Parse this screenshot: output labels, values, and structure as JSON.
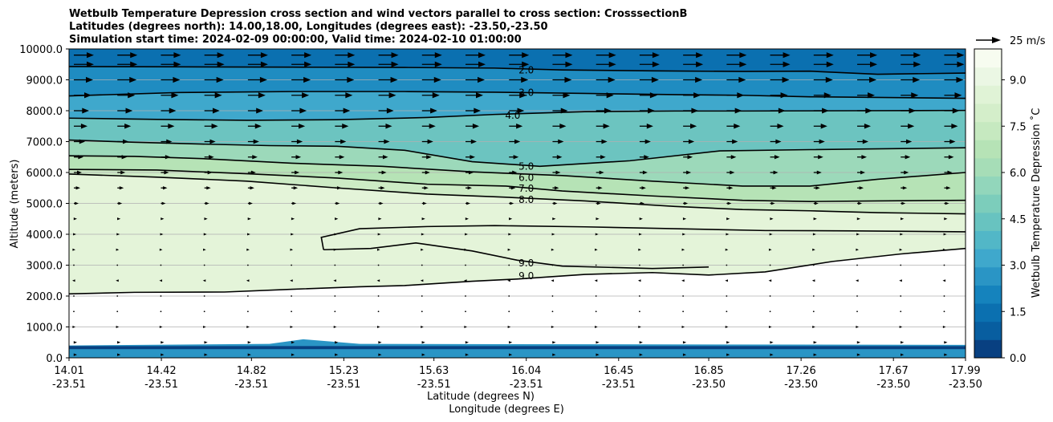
{
  "chart_data": {
    "type": "heatmap",
    "title_lines": [
      "Wetbulb Temperature Depression cross section and wind vectors parallel to cross section: CrosssectionB",
      "Latitudes (degrees north): 14.00,18.00, Longitudes (degrees east): -23.50,-23.50",
      "Simulation start time: 2024-02-09 00:00:00, Valid time: 2024-02-10 01:00:00"
    ],
    "xlabel": "Latitude (degrees N)",
    "xlabel2": "Longitude (degrees E)",
    "ylabel": "Altitude (meters)",
    "colorbar_label": "Wetbulb Temperature Depression ˚C",
    "quiver_key": "25 m/s",
    "xlim": [
      14.01,
      17.99
    ],
    "ylim": [
      0,
      10000
    ],
    "x_ticks": [
      {
        "lat": "14.01",
        "lon": "-23.51",
        "v": 14.01
      },
      {
        "lat": "14.42",
        "lon": "-23.51",
        "v": 14.42
      },
      {
        "lat": "14.82",
        "lon": "-23.51",
        "v": 14.82
      },
      {
        "lat": "15.23",
        "lon": "-23.51",
        "v": 15.23
      },
      {
        "lat": "15.63",
        "lon": "-23.51",
        "v": 15.63
      },
      {
        "lat": "16.04",
        "lon": "-23.51",
        "v": 16.04
      },
      {
        "lat": "16.45",
        "lon": "-23.51",
        "v": 16.45
      },
      {
        "lat": "16.85",
        "lon": "-23.50",
        "v": 16.85
      },
      {
        "lat": "17.26",
        "lon": "-23.50",
        "v": 17.26
      },
      {
        "lat": "17.67",
        "lon": "-23.50",
        "v": 17.67
      },
      {
        "lat": "17.99",
        "lon": "-23.50",
        "v": 17.99
      }
    ],
    "y_ticks": [
      {
        "label": "0.0",
        "v": 0
      },
      {
        "label": "1000.0",
        "v": 1000
      },
      {
        "label": "2000.0",
        "v": 2000
      },
      {
        "label": "3000.0",
        "v": 3000
      },
      {
        "label": "4000.0",
        "v": 4000
      },
      {
        "label": "5000.0",
        "v": 5000
      },
      {
        "label": "6000.0",
        "v": 6000
      },
      {
        "label": "7000.0",
        "v": 7000
      },
      {
        "label": "8000.0",
        "v": 8000
      },
      {
        "label": "9000.0",
        "v": 9000
      },
      {
        "label": "10000.0",
        "v": 10000
      }
    ],
    "colorbar_ticks": [
      "0.0",
      "1.5",
      "3.0",
      "4.5",
      "6.0",
      "7.5",
      "9.0"
    ],
    "colorbar_range": [
      0,
      10
    ],
    "colorbar_colors": [
      "#084081",
      "#085ea0",
      "#0b70b0",
      "#1583bd",
      "#2a95c5",
      "#3fa8cc",
      "#52b7c7",
      "#68c3c0",
      "#7ccdbb",
      "#92d6bb",
      "#a6ddb7",
      "#b6e3b6",
      "#c6e9c0",
      "#d4eeca",
      "#e0f3d6",
      "#ebf7e4",
      "#f7fcf0"
    ],
    "contours": [
      {
        "label": "2.0",
        "level": 2,
        "pts": [
          [
            14.01,
            9430
          ],
          [
            14.5,
            9420
          ],
          [
            15.0,
            9410
          ],
          [
            15.5,
            9400
          ],
          [
            15.9,
            9380
          ],
          [
            16.2,
            9320
          ],
          [
            16.6,
            9290
          ],
          [
            17.0,
            9270
          ],
          [
            17.3,
            9280
          ],
          [
            17.6,
            9180
          ],
          [
            17.99,
            9220
          ]
        ]
      },
      {
        "label": "3.0",
        "level": 3,
        "pts": [
          [
            14.01,
            8480
          ],
          [
            14.5,
            8590
          ],
          [
            15.0,
            8620
          ],
          [
            15.5,
            8620
          ],
          [
            15.9,
            8600
          ],
          [
            16.3,
            8560
          ],
          [
            16.7,
            8520
          ],
          [
            17.0,
            8500
          ],
          [
            17.3,
            8450
          ],
          [
            17.6,
            8430
          ],
          [
            17.99,
            8400
          ]
        ]
      },
      {
        "label": "4.0",
        "level": 4,
        "pts": [
          [
            14.01,
            7760
          ],
          [
            14.4,
            7720
          ],
          [
            14.8,
            7690
          ],
          [
            15.2,
            7710
          ],
          [
            15.6,
            7780
          ],
          [
            15.9,
            7880
          ],
          [
            16.3,
            7970
          ],
          [
            16.7,
            7990
          ],
          [
            17.0,
            7990
          ],
          [
            17.5,
            8000
          ],
          [
            17.99,
            8010
          ]
        ]
      },
      {
        "label": "5.0",
        "level": 5,
        "pts": [
          [
            14.01,
            7050
          ],
          [
            14.3,
            6980
          ],
          [
            14.6,
            6920
          ],
          [
            14.9,
            6870
          ],
          [
            15.2,
            6850
          ],
          [
            15.5,
            6720
          ],
          [
            15.8,
            6350
          ],
          [
            16.1,
            6200
          ],
          [
            16.5,
            6380
          ],
          [
            16.9,
            6700
          ],
          [
            17.3,
            6740
          ],
          [
            17.99,
            6800
          ]
        ]
      },
      {
        "label": "6.0",
        "level": 6,
        "pts": [
          [
            14.01,
            6540
          ],
          [
            14.3,
            6520
          ],
          [
            14.6,
            6450
          ],
          [
            15.0,
            6300
          ],
          [
            15.4,
            6200
          ],
          [
            15.8,
            6020
          ],
          [
            16.2,
            5900
          ],
          [
            16.6,
            5720
          ],
          [
            17.0,
            5560
          ],
          [
            17.3,
            5560
          ],
          [
            17.6,
            5780
          ],
          [
            17.99,
            6000
          ]
        ]
      },
      {
        "label": "7.0",
        "level": 7,
        "pts": [
          [
            14.01,
            6100
          ],
          [
            14.4,
            6080
          ],
          [
            14.8,
            5960
          ],
          [
            15.2,
            5820
          ],
          [
            15.6,
            5620
          ],
          [
            15.95,
            5560
          ],
          [
            16.2,
            5400
          ],
          [
            16.6,
            5240
          ],
          [
            17.0,
            5100
          ],
          [
            17.3,
            5060
          ],
          [
            17.6,
            5080
          ],
          [
            17.99,
            5100
          ]
        ]
      },
      {
        "label": "8.0",
        "level": 8,
        "pts": [
          [
            14.01,
            5950
          ],
          [
            14.4,
            5850
          ],
          [
            14.8,
            5720
          ],
          [
            15.2,
            5500
          ],
          [
            15.6,
            5300
          ],
          [
            15.95,
            5200
          ],
          [
            16.3,
            5080
          ],
          [
            16.7,
            4900
          ],
          [
            17.0,
            4800
          ],
          [
            17.3,
            4760
          ],
          [
            17.6,
            4700
          ],
          [
            17.99,
            4660
          ]
        ]
      },
      {
        "label": "9.0",
        "level": 9,
        "pts": [
          [
            14.01,
            2070
          ],
          [
            14.3,
            2120
          ],
          [
            14.7,
            2130
          ],
          [
            15.0,
            2220
          ],
          [
            15.3,
            2300
          ],
          [
            15.5,
            2340
          ],
          [
            15.8,
            2480
          ],
          [
            16.0,
            2550
          ],
          [
            16.3,
            2700
          ],
          [
            16.6,
            2760
          ],
          [
            16.85,
            2680
          ],
          [
            17.1,
            2780
          ],
          [
            17.4,
            3120
          ],
          [
            17.7,
            3360
          ],
          [
            17.99,
            3540
          ]
        ]
      },
      {
        "label": "9.0",
        "level": 9,
        "pts": [
          [
            15.14,
            3500
          ],
          [
            15.13,
            3900
          ],
          [
            15.3,
            4180
          ],
          [
            15.6,
            4250
          ],
          [
            15.9,
            4280
          ],
          [
            16.3,
            4240
          ],
          [
            16.7,
            4180
          ],
          [
            17.1,
            4120
          ],
          [
            17.5,
            4110
          ],
          [
            17.99,
            4080
          ]
        ]
      },
      {
        "label": "9.0",
        "level": 9,
        "pts": [
          [
            15.14,
            3500
          ],
          [
            15.35,
            3540
          ],
          [
            15.55,
            3720
          ],
          [
            15.8,
            3460
          ],
          [
            16.0,
            3160
          ],
          [
            16.2,
            2970
          ],
          [
            16.6,
            2890
          ],
          [
            16.85,
            2940
          ]
        ]
      }
    ],
    "vector_rows": [
      {
        "z": 9800,
        "u": 25
      },
      {
        "z": 9500,
        "u": 25
      },
      {
        "z": 9000,
        "u": 24
      },
      {
        "z": 8500,
        "u": 22
      },
      {
        "z": 8000,
        "u": 19
      },
      {
        "z": 7500,
        "u": 17
      },
      {
        "z": 7000,
        "u": 14
      },
      {
        "z": 6500,
        "u": 12
      },
      {
        "z": 6000,
        "u": 10
      },
      {
        "z": 5500,
        "u": 8
      },
      {
        "z": 5000,
        "u": 6
      },
      {
        "z": 4500,
        "u": 4
      },
      {
        "z": 4000,
        "u": 3
      },
      {
        "z": 3500,
        "u": 2
      },
      {
        "z": 3000,
        "u": -1
      },
      {
        "z": 2500,
        "u": -2
      },
      {
        "z": 2000,
        "u": 1
      },
      {
        "z": 1500,
        "u": 1
      },
      {
        "z": 1000,
        "u": 2
      },
      {
        "z": 500,
        "u": 4
      },
      {
        "z": 100,
        "u": 4
      }
    ]
  }
}
